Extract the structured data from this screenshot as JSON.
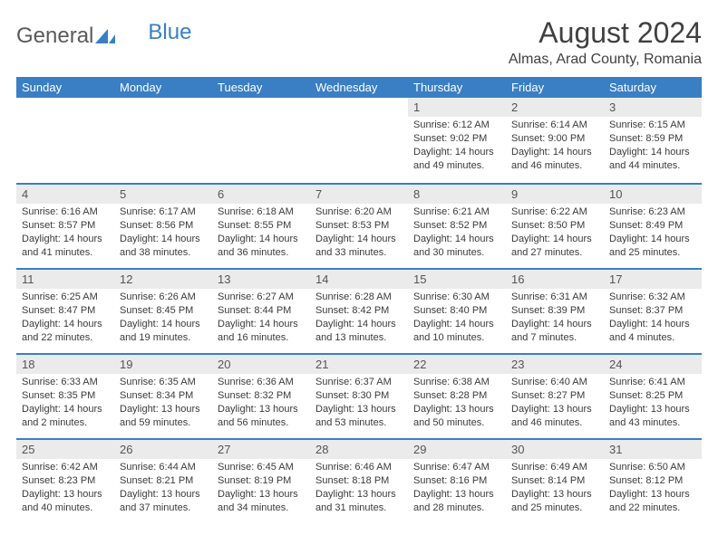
{
  "logo": {
    "text1": "General",
    "text2": "Blue"
  },
  "title": "August 2024",
  "location": "Almas, Arad County, Romania",
  "weekdays": [
    "Sunday",
    "Monday",
    "Tuesday",
    "Wednesday",
    "Thursday",
    "Friday",
    "Saturday"
  ],
  "colors": {
    "header_bg": "#3a7fc4",
    "header_fg": "#ffffff",
    "daynum_bg": "#ebebeb",
    "row_border": "#3a7fc4",
    "text": "#3a3a3a",
    "title": "#404040"
  },
  "weeks": [
    [
      null,
      null,
      null,
      null,
      {
        "n": "1",
        "sr": "Sunrise: 6:12 AM",
        "ss": "Sunset: 9:02 PM",
        "d1": "Daylight: 14 hours",
        "d2": "and 49 minutes."
      },
      {
        "n": "2",
        "sr": "Sunrise: 6:14 AM",
        "ss": "Sunset: 9:00 PM",
        "d1": "Daylight: 14 hours",
        "d2": "and 46 minutes."
      },
      {
        "n": "3",
        "sr": "Sunrise: 6:15 AM",
        "ss": "Sunset: 8:59 PM",
        "d1": "Daylight: 14 hours",
        "d2": "and 44 minutes."
      }
    ],
    [
      {
        "n": "4",
        "sr": "Sunrise: 6:16 AM",
        "ss": "Sunset: 8:57 PM",
        "d1": "Daylight: 14 hours",
        "d2": "and 41 minutes."
      },
      {
        "n": "5",
        "sr": "Sunrise: 6:17 AM",
        "ss": "Sunset: 8:56 PM",
        "d1": "Daylight: 14 hours",
        "d2": "and 38 minutes."
      },
      {
        "n": "6",
        "sr": "Sunrise: 6:18 AM",
        "ss": "Sunset: 8:55 PM",
        "d1": "Daylight: 14 hours",
        "d2": "and 36 minutes."
      },
      {
        "n": "7",
        "sr": "Sunrise: 6:20 AM",
        "ss": "Sunset: 8:53 PM",
        "d1": "Daylight: 14 hours",
        "d2": "and 33 minutes."
      },
      {
        "n": "8",
        "sr": "Sunrise: 6:21 AM",
        "ss": "Sunset: 8:52 PM",
        "d1": "Daylight: 14 hours",
        "d2": "and 30 minutes."
      },
      {
        "n": "9",
        "sr": "Sunrise: 6:22 AM",
        "ss": "Sunset: 8:50 PM",
        "d1": "Daylight: 14 hours",
        "d2": "and 27 minutes."
      },
      {
        "n": "10",
        "sr": "Sunrise: 6:23 AM",
        "ss": "Sunset: 8:49 PM",
        "d1": "Daylight: 14 hours",
        "d2": "and 25 minutes."
      }
    ],
    [
      {
        "n": "11",
        "sr": "Sunrise: 6:25 AM",
        "ss": "Sunset: 8:47 PM",
        "d1": "Daylight: 14 hours",
        "d2": "and 22 minutes."
      },
      {
        "n": "12",
        "sr": "Sunrise: 6:26 AM",
        "ss": "Sunset: 8:45 PM",
        "d1": "Daylight: 14 hours",
        "d2": "and 19 minutes."
      },
      {
        "n": "13",
        "sr": "Sunrise: 6:27 AM",
        "ss": "Sunset: 8:44 PM",
        "d1": "Daylight: 14 hours",
        "d2": "and 16 minutes."
      },
      {
        "n": "14",
        "sr": "Sunrise: 6:28 AM",
        "ss": "Sunset: 8:42 PM",
        "d1": "Daylight: 14 hours",
        "d2": "and 13 minutes."
      },
      {
        "n": "15",
        "sr": "Sunrise: 6:30 AM",
        "ss": "Sunset: 8:40 PM",
        "d1": "Daylight: 14 hours",
        "d2": "and 10 minutes."
      },
      {
        "n": "16",
        "sr": "Sunrise: 6:31 AM",
        "ss": "Sunset: 8:39 PM",
        "d1": "Daylight: 14 hours",
        "d2": "and 7 minutes."
      },
      {
        "n": "17",
        "sr": "Sunrise: 6:32 AM",
        "ss": "Sunset: 8:37 PM",
        "d1": "Daylight: 14 hours",
        "d2": "and 4 minutes."
      }
    ],
    [
      {
        "n": "18",
        "sr": "Sunrise: 6:33 AM",
        "ss": "Sunset: 8:35 PM",
        "d1": "Daylight: 14 hours",
        "d2": "and 2 minutes."
      },
      {
        "n": "19",
        "sr": "Sunrise: 6:35 AM",
        "ss": "Sunset: 8:34 PM",
        "d1": "Daylight: 13 hours",
        "d2": "and 59 minutes."
      },
      {
        "n": "20",
        "sr": "Sunrise: 6:36 AM",
        "ss": "Sunset: 8:32 PM",
        "d1": "Daylight: 13 hours",
        "d2": "and 56 minutes."
      },
      {
        "n": "21",
        "sr": "Sunrise: 6:37 AM",
        "ss": "Sunset: 8:30 PM",
        "d1": "Daylight: 13 hours",
        "d2": "and 53 minutes."
      },
      {
        "n": "22",
        "sr": "Sunrise: 6:38 AM",
        "ss": "Sunset: 8:28 PM",
        "d1": "Daylight: 13 hours",
        "d2": "and 50 minutes."
      },
      {
        "n": "23",
        "sr": "Sunrise: 6:40 AM",
        "ss": "Sunset: 8:27 PM",
        "d1": "Daylight: 13 hours",
        "d2": "and 46 minutes."
      },
      {
        "n": "24",
        "sr": "Sunrise: 6:41 AM",
        "ss": "Sunset: 8:25 PM",
        "d1": "Daylight: 13 hours",
        "d2": "and 43 minutes."
      }
    ],
    [
      {
        "n": "25",
        "sr": "Sunrise: 6:42 AM",
        "ss": "Sunset: 8:23 PM",
        "d1": "Daylight: 13 hours",
        "d2": "and 40 minutes."
      },
      {
        "n": "26",
        "sr": "Sunrise: 6:44 AM",
        "ss": "Sunset: 8:21 PM",
        "d1": "Daylight: 13 hours",
        "d2": "and 37 minutes."
      },
      {
        "n": "27",
        "sr": "Sunrise: 6:45 AM",
        "ss": "Sunset: 8:19 PM",
        "d1": "Daylight: 13 hours",
        "d2": "and 34 minutes."
      },
      {
        "n": "28",
        "sr": "Sunrise: 6:46 AM",
        "ss": "Sunset: 8:18 PM",
        "d1": "Daylight: 13 hours",
        "d2": "and 31 minutes."
      },
      {
        "n": "29",
        "sr": "Sunrise: 6:47 AM",
        "ss": "Sunset: 8:16 PM",
        "d1": "Daylight: 13 hours",
        "d2": "and 28 minutes."
      },
      {
        "n": "30",
        "sr": "Sunrise: 6:49 AM",
        "ss": "Sunset: 8:14 PM",
        "d1": "Daylight: 13 hours",
        "d2": "and 25 minutes."
      },
      {
        "n": "31",
        "sr": "Sunrise: 6:50 AM",
        "ss": "Sunset: 8:12 PM",
        "d1": "Daylight: 13 hours",
        "d2": "and 22 minutes."
      }
    ]
  ]
}
